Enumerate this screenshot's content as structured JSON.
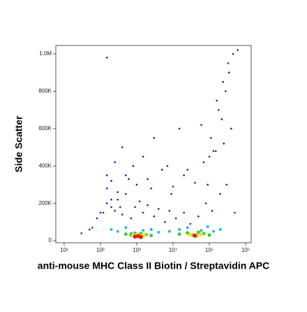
{
  "chart_data": {
    "type": "scatter",
    "x_label": "anti-mouse MHC Class II Biotin / Streptavidin APC",
    "y_label": "Side Scatter",
    "xscale": "log",
    "xlim": [
      5.9,
      1420000
    ],
    "ylim": [
      -11000,
      1045000
    ],
    "xticks": [
      {
        "value": 10,
        "label": "10¹"
      },
      {
        "value": 100,
        "label": "10²"
      },
      {
        "value": 1000,
        "label": "10³"
      },
      {
        "value": 10000,
        "label": "10⁴"
      },
      {
        "value": 100000,
        "label": "10⁵"
      },
      {
        "value": 1000000,
        "label": "10⁶"
      }
    ],
    "yticks": [
      0,
      {
        "value": 200000,
        "label": "200K"
      },
      {
        "value": 400000,
        "label": "400K"
      },
      {
        "value": 600000,
        "label": "600K"
      },
      {
        "value": 800000,
        "label": "800K"
      },
      {
        "value": 1000000,
        "label": "1.0M"
      }
    ],
    "series": [
      {
        "color": "#1a1ab4",
        "size": 1.3,
        "x": [
          30,
          60,
          80,
          120,
          150,
          200,
          250,
          300,
          400,
          500,
          700,
          900,
          1200,
          1500,
          2000,
          3000,
          4000,
          6000,
          8000,
          12000,
          20000,
          30000,
          50000,
          80000,
          120000,
          200000,
          300000,
          500000,
          100,
          150,
          200,
          300,
          500,
          800,
          1000,
          2000,
          5000,
          10000,
          20000,
          40000,
          70000,
          100000,
          150000,
          250000,
          400000,
          150,
          250,
          400,
          600,
          1500,
          3000,
          7000,
          15000,
          60000,
          90000,
          130000,
          180000,
          220000,
          280000,
          350000,
          200,
          350,
          2500,
          9000,
          25000,
          110000,
          160000,
          240000,
          330000,
          450000,
          600000,
          150,
          50
        ],
        "values": [
          40000,
          70000,
          120000,
          150000,
          200000,
          180000,
          160000,
          220000,
          140000,
          250000,
          120000,
          180000,
          210000,
          150000,
          190000,
          130000,
          170000,
          100000,
          160000,
          120000,
          150000,
          90000,
          130000,
          200000,
          160000,
          250000,
          300000,
          150000,
          150000,
          280000,
          320000,
          260000,
          350000,
          400000,
          300000,
          330000,
          380000,
          290000,
          350000,
          310000,
          420000,
          450000,
          480000,
          520000,
          600000,
          350000,
          420000,
          500000,
          330000,
          450000,
          550000,
          400000,
          600000,
          620000,
          300000,
          480000,
          700000,
          650000,
          800000,
          900000,
          220000,
          180000,
          280000,
          250000,
          380000,
          550000,
          750000,
          850000,
          950000,
          1000000,
          1020000,
          980000,
          60000
        ]
      },
      {
        "color": "#22b8e8",
        "size": 2,
        "x": [
          200,
          300,
          500,
          700,
          1500,
          2500,
          4000,
          8000,
          15000,
          25000,
          60000,
          90000,
          130000,
          200000
        ],
        "values": [
          60000,
          50000,
          70000,
          40000,
          55000,
          60000,
          45000,
          50000,
          60000,
          70000,
          55000,
          75000,
          50000,
          60000
        ]
      },
      {
        "color": "#3cc83c",
        "size": 2.5,
        "x": [
          500,
          700,
          900,
          1300,
          1800,
          2500,
          15000,
          25000,
          35000,
          50000,
          70000,
          100000
        ],
        "values": [
          35000,
          30000,
          40000,
          38000,
          32000,
          28000,
          35000,
          42000,
          30000,
          45000,
          38000,
          30000
        ]
      },
      {
        "color": "#f0e020",
        "size": 3,
        "x": [
          800,
          1000,
          1300,
          1600,
          30000,
          45000,
          60000
        ],
        "values": [
          28000,
          32000,
          26000,
          30000,
          32000,
          28000,
          35000
        ]
      },
      {
        "color": "#e02010",
        "size": 3,
        "x": [
          900,
          1100,
          1300,
          40000
        ],
        "values": [
          22000,
          25000,
          20000,
          27000
        ]
      }
    ]
  }
}
